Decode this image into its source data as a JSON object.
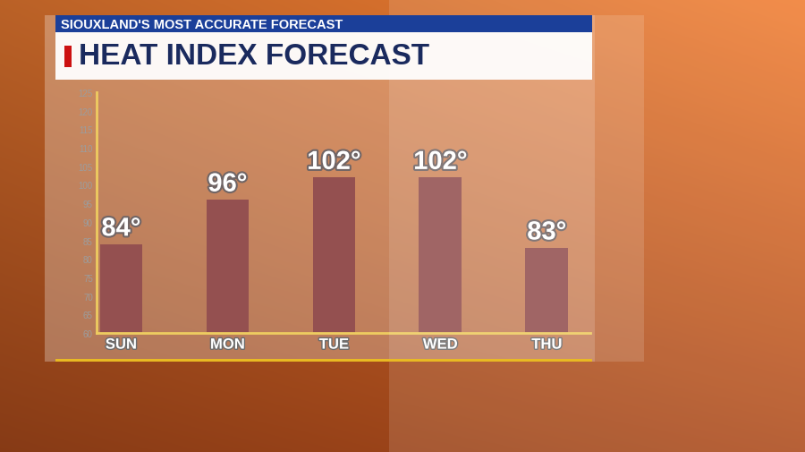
{
  "chart_data": {
    "type": "bar",
    "subtitle": "SIOUXLAND'S MOST ACCURATE FORECAST",
    "title": "HEAT INDEX FORECAST",
    "categories": [
      "SUN",
      "MON",
      "TUE",
      "WED",
      "THU"
    ],
    "values": [
      84,
      96,
      102,
      102,
      83
    ],
    "value_labels": [
      "84°",
      "96°",
      "102°",
      "102°",
      "83°"
    ],
    "data_labels": true,
    "color": "#6b0d0d",
    "ylim": [
      60,
      125
    ],
    "yticks": [
      60,
      65,
      70,
      75,
      80,
      85,
      90,
      95,
      100,
      105,
      110,
      115,
      120,
      125
    ],
    "grid": false
  }
}
